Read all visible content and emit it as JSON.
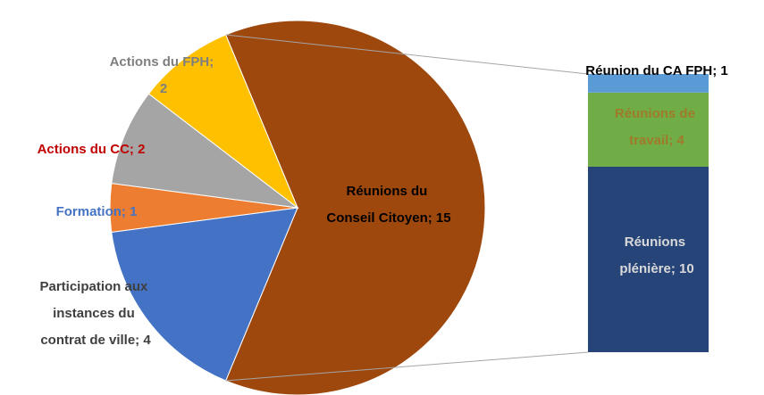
{
  "chart_data": [
    {
      "type": "pie",
      "values": [
        15,
        4,
        1,
        2,
        2
      ],
      "value_labels": [
        "Réunions du Conseil Citoyen; 15",
        "Participation aux instances du contrat de ville; 4",
        "Formation; 1",
        "Actions du CC; 2",
        "Actions du FPH; 2"
      ],
      "colors": [
        "#9E480E",
        "#4472C4",
        "#ED7D31",
        "#A5A5A5",
        "#FFC000"
      ],
      "label_colors": [
        "#000000",
        "#404040",
        "#4472C4",
        "#C00000",
        "#7F7F7F"
      ]
    },
    {
      "type": "bar",
      "stacked": true,
      "values": [
        10,
        4,
        1
      ],
      "value_labels": [
        "Réunions plénière; 10",
        "Réunions de travail; 4",
        "Réunion du CA FPH; 1"
      ],
      "colors": [
        "#264478",
        "#70AD47",
        "#5B9BD5"
      ],
      "label_colors": [
        "#D9D9D9",
        "#A07A2A",
        "#000000"
      ]
    }
  ]
}
